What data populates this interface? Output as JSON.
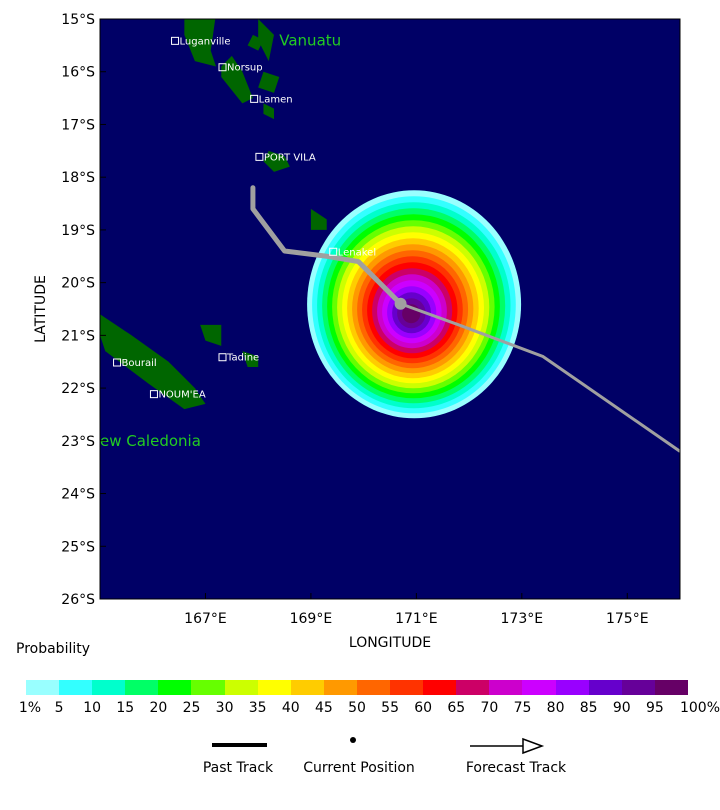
{
  "map": {
    "background_color": "#000066",
    "land_color": "#006600",
    "track_color": "#a0a0a0",
    "lat_labels": [
      "15°S",
      "16°S",
      "17°S",
      "18°S",
      "19°S",
      "20°S",
      "21°S",
      "22°S",
      "23°S",
      "24°S",
      "25°S",
      "26°S"
    ],
    "lon_labels": [
      "167°E",
      "169°E",
      "171°E",
      "173°E",
      "175°E"
    ],
    "xlabel": "LONGITUDE",
    "ylabel": "LATITUDE",
    "countries": [
      "Vanuatu",
      "ew Caledonia"
    ],
    "cities": [
      "Luganville",
      "Norsup",
      "Lamen",
      "PORT VILA",
      "Lenakel",
      "Tadine",
      "Bourail",
      "NOUM'EA"
    ]
  },
  "legend": {
    "title": "Probability",
    "colors": [
      "#99ffff",
      "#33ffff",
      "#00ffcc",
      "#00ff66",
      "#00ff00",
      "#66ff00",
      "#ccff00",
      "#ffff00",
      "#ffcc00",
      "#ff9900",
      "#ff6600",
      "#ff3300",
      "#ff0000",
      "#cc0066",
      "#cc00cc",
      "#cc00ff",
      "#9900ff",
      "#6600cc",
      "#660099",
      "#660066"
    ],
    "labels": [
      "1%",
      "5",
      "10",
      "15",
      "20",
      "25",
      "30",
      "35",
      "40",
      "45",
      "50",
      "55",
      "60",
      "65",
      "70",
      "75",
      "80",
      "85",
      "90",
      "95",
      "100%"
    ]
  },
  "key": {
    "past_track": "Past Track",
    "current_position": "Current Position",
    "forecast_track": "Forecast Track"
  },
  "chart_data": {
    "type": "heatmap",
    "xlabel": "LONGITUDE",
    "ylabel": "LATITUDE",
    "xlim": [
      165.0,
      176.0
    ],
    "ylim": [
      -26.0,
      -15.0
    ],
    "past_track": {
      "lon": [
        167.9,
        167.9,
        168.5,
        169.3,
        169.9,
        170.3,
        170.7
      ],
      "lat": [
        -18.2,
        -18.6,
        -19.4,
        -19.5,
        -19.6,
        -20.0,
        -20.4
      ]
    },
    "current_position": {
      "lon": 170.7,
      "lat": -20.4
    },
    "forecast_track": {
      "lon": [
        170.7,
        171.8,
        173.4,
        176.0
      ],
      "lat": [
        -20.4,
        -20.8,
        -21.4,
        -23.2
      ]
    },
    "probability_center": {
      "lon": 170.9,
      "lat": -20.6
    },
    "probability_levels": [
      1,
      5,
      10,
      15,
      20,
      25,
      30,
      35,
      40,
      45,
      50,
      55,
      60,
      65,
      70,
      75,
      80,
      85,
      90,
      95,
      100
    ]
  }
}
